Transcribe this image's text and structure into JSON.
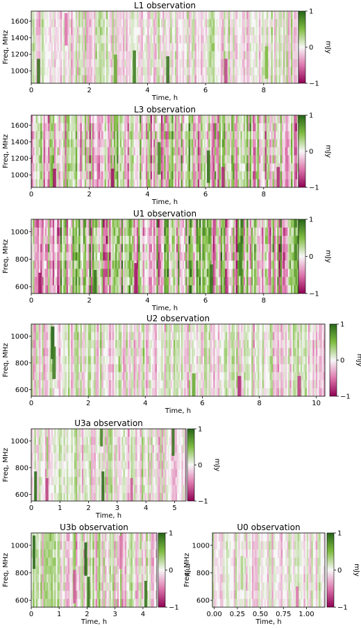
{
  "colormap": {
    "negative": "#8e0152",
    "mid_negative": "#de77ae",
    "zero": "#f7f7f7",
    "mid_positive": "#7fbc41",
    "positive": "#276419"
  },
  "colorbar": {
    "ticks": [
      "1",
      "0",
      "−1"
    ],
    "label": "mJy"
  },
  "chart_data": [
    {
      "type": "heatmap",
      "title": "L1 observation",
      "xlabel": "Time, h",
      "ylabel": "Freq, MHz",
      "xlim": [
        0,
        9.2
      ],
      "ylim": [
        850,
        1720
      ],
      "xticks": [
        "0",
        "2",
        "4",
        "6",
        "8"
      ],
      "yticks": [
        "1000",
        "1200",
        "1400",
        "1600"
      ],
      "clim": [
        -1,
        1
      ],
      "amplitude": 0.35,
      "features": [
        {
          "t": 0.25,
          "f": 950,
          "value": 0.9
        },
        {
          "t": 2.9,
          "f": 1000,
          "value": 0.6
        },
        {
          "t": 3.55,
          "f": 1050,
          "value": 0.85
        },
        {
          "t": 4.7,
          "f": 980,
          "value": 0.9
        },
        {
          "t": 6.7,
          "f": 950,
          "value": -0.7
        },
        {
          "t": 1.2,
          "f": 1500,
          "value": -0.5
        },
        {
          "t": 8.1,
          "f": 1100,
          "value": 0.5
        }
      ]
    },
    {
      "type": "heatmap",
      "title": "L3 observation",
      "xlabel": "Time, h",
      "ylabel": "Freq, MHz",
      "xlim": [
        0,
        9.2
      ],
      "ylim": [
        850,
        1720
      ],
      "xticks": [
        "0",
        "2",
        "4",
        "6",
        "8"
      ],
      "yticks": [
        "1000",
        "1200",
        "1400",
        "1600"
      ],
      "clim": [
        -1,
        1
      ],
      "amplitude": 0.7,
      "features": [
        {
          "t": 0.8,
          "f": 880,
          "value": -0.9
        },
        {
          "t": 2.8,
          "f": 880,
          "value": -0.9
        },
        {
          "t": 6.1,
          "f": 1100,
          "value": 0.9
        },
        {
          "t": 6.6,
          "f": 900,
          "value": -0.8
        },
        {
          "t": 4.4,
          "f": 1200,
          "value": 0.8
        },
        {
          "t": 8.5,
          "f": 900,
          "value": -0.8
        }
      ]
    },
    {
      "type": "heatmap",
      "title": "U1 observation",
      "xlabel": "Time, h",
      "ylabel": "Freq, MHz",
      "xlim": [
        0,
        9.2
      ],
      "ylim": [
        550,
        1090
      ],
      "xticks": [
        "0",
        "2",
        "4",
        "6",
        "8"
      ],
      "yticks": [
        "600",
        "800",
        "1000"
      ],
      "clim": [
        -1,
        1
      ],
      "amplitude": 0.85,
      "features": [
        {
          "t": 0.3,
          "f": 580,
          "value": -0.9
        },
        {
          "t": 2.2,
          "f": 600,
          "value": 0.9
        },
        {
          "t": 3.6,
          "f": 650,
          "value": -0.9
        },
        {
          "t": 6.2,
          "f": 640,
          "value": 0.9
        },
        {
          "t": 7.2,
          "f": 800,
          "value": 0.85
        }
      ]
    },
    {
      "type": "heatmap",
      "title": "U2 observation",
      "xlabel": "Time, h",
      "ylabel": "Freq, MHz",
      "xlim": [
        0,
        10.3
      ],
      "ylim": [
        550,
        1090
      ],
      "xticks": [
        "0",
        "2",
        "4",
        "6",
        "8",
        "10"
      ],
      "yticks": [
        "600",
        "800",
        "1000"
      ],
      "clim": [
        -1,
        1
      ],
      "amplitude": 0.4,
      "features": [
        {
          "t": 0.75,
          "f": 950,
          "value": 1.0
        },
        {
          "t": 0.8,
          "f": 800,
          "value": 0.85
        },
        {
          "t": 7.3,
          "f": 580,
          "value": -0.8
        },
        {
          "t": 9.4,
          "f": 580,
          "value": -0.7
        },
        {
          "t": 5.7,
          "f": 600,
          "value": 0.6
        }
      ]
    },
    {
      "type": "heatmap",
      "title": "U3a observation",
      "xlabel": "Time, h",
      "ylabel": "Freq, MHz",
      "xlim": [
        0,
        5.4
      ],
      "ylim": [
        550,
        1090
      ],
      "xticks": [
        "0",
        "1",
        "2",
        "3",
        "4",
        "5"
      ],
      "yticks": [
        "600",
        "800",
        "1000"
      ],
      "clim": [
        -1,
        1
      ],
      "amplitude": 0.4,
      "features": [
        {
          "t": 0.15,
          "f": 650,
          "value": 0.95
        },
        {
          "t": 0.55,
          "f": 600,
          "value": -0.7
        },
        {
          "t": 2.5,
          "f": 650,
          "value": 0.95
        },
        {
          "t": 2.45,
          "f": 1080,
          "value": 0.8
        },
        {
          "t": 4.95,
          "f": 1010,
          "value": 0.9
        },
        {
          "t": 3.5,
          "f": 600,
          "value": -0.6
        }
      ]
    },
    {
      "type": "heatmap",
      "title": "U3b observation",
      "xlabel": "Time, h",
      "ylabel": "Freq, MHz",
      "xlim": [
        0,
        4.5
      ],
      "ylim": [
        550,
        1090
      ],
      "xticks": [
        "0",
        "1",
        "2",
        "3",
        "4"
      ],
      "yticks": [
        "600",
        "800",
        "1000"
      ],
      "clim": [
        -1,
        1
      ],
      "amplitude": 0.45,
      "features": [
        {
          "t": 0.1,
          "f": 950,
          "value": 0.95
        },
        {
          "t": 1.95,
          "f": 900,
          "value": 1.0
        },
        {
          "t": 2.05,
          "f": 650,
          "value": 0.9
        },
        {
          "t": 4.1,
          "f": 620,
          "value": 0.9
        },
        {
          "t": 1.55,
          "f": 700,
          "value": -0.6
        },
        {
          "t": 3.2,
          "f": 950,
          "value": -0.5
        }
      ]
    },
    {
      "type": "heatmap",
      "title": "U0 observation",
      "xlabel": "Time, h",
      "ylabel": "Freq, MHz",
      "xlim": [
        -0.02,
        1.2
      ],
      "ylim": [
        550,
        1090
      ],
      "xticks": [
        "0.00",
        "0.25",
        "0.50",
        "0.75",
        "1.00"
      ],
      "yticks": [
        "600",
        "800",
        "1000"
      ],
      "clim": [
        -1,
        1
      ],
      "amplitude": 0.3,
      "features": [
        {
          "t": 0.9,
          "f": 580,
          "value": -0.5
        },
        {
          "t": 0.3,
          "f": 800,
          "value": 0.3
        }
      ]
    }
  ]
}
